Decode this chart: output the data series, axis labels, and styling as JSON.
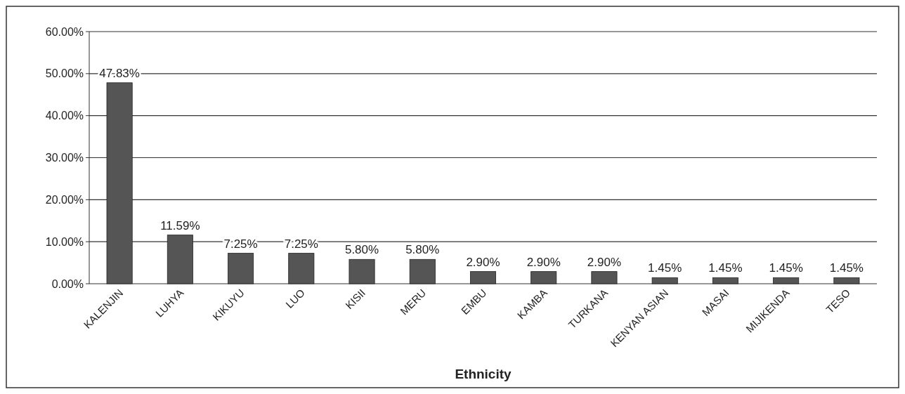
{
  "chart_data": {
    "type": "bar",
    "xlabel": "Ethnicity",
    "categories": [
      "KALENJIN",
      "LUHYA",
      "KIKUYU",
      "LUO",
      "KISII",
      "MERU",
      "EMBU",
      "KAMBA",
      "TURKANA",
      "KENYAN ASIAN",
      "MASAI",
      "MIJIKENDA",
      "TESO"
    ],
    "values": [
      47.83,
      11.59,
      7.25,
      7.25,
      5.8,
      5.8,
      2.9,
      2.9,
      2.9,
      1.45,
      1.45,
      1.45,
      1.45
    ],
    "value_labels": [
      "47.83%",
      "11.59%",
      "7.25%",
      "7.25%",
      "5.80%",
      "5.80%",
      "2.90%",
      "2.90%",
      "2.90%",
      "1.45%",
      "1.45%",
      "1.45%",
      "1.45%"
    ],
    "color": "#555555",
    "ylim": [
      0,
      60
    ],
    "yticks": [
      {
        "value": 0,
        "label": "0.00%"
      },
      {
        "value": 10,
        "label": "10.00%"
      },
      {
        "value": 20,
        "label": "20.00%"
      },
      {
        "value": 30,
        "label": "30.00%"
      },
      {
        "value": 40,
        "label": "40.00%"
      },
      {
        "value": 50,
        "label": "50.00%"
      },
      {
        "value": 60,
        "label": "60.00%"
      }
    ],
    "grid": "y"
  }
}
